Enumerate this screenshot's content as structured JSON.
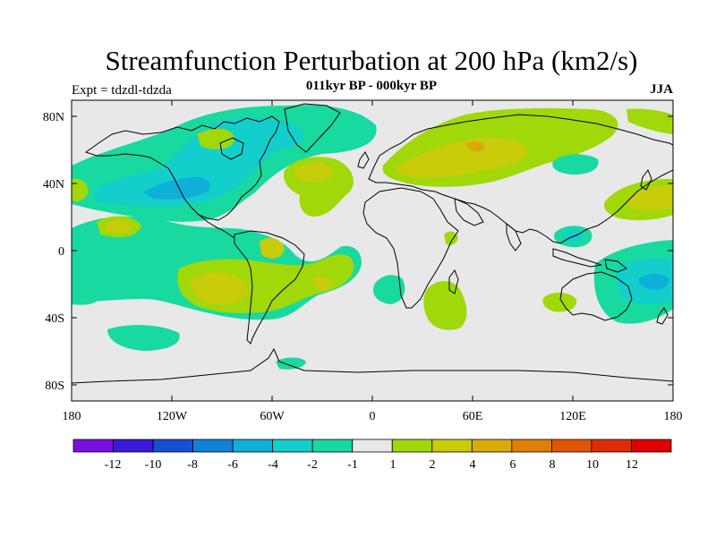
{
  "header": {
    "title": "Streamfunction Perturbation at 200 hPa (km2/s)",
    "subtitle": "011kyr BP - 000kyr BP",
    "left_label": "Expt = tdzdl-tdzda",
    "right_label": "JJA"
  },
  "axes": {
    "lat_ticks": [
      "80N",
      "40N",
      "0",
      "40S",
      "80S"
    ],
    "lon_ticks": [
      "180",
      "120W",
      "60W",
      "0",
      "60E",
      "120E",
      "180"
    ]
  },
  "colorbar": {
    "labels": [
      "-12",
      "-10",
      "-8",
      "-6",
      "-4",
      "-2",
      "-1",
      "1",
      "2",
      "4",
      "6",
      "8",
      "10",
      "12"
    ],
    "colors": [
      "#7a10e0",
      "#3a1ad8",
      "#1450d0",
      "#0f82d8",
      "#0fb0d8",
      "#12cfcc",
      "#18d9a0",
      "#e8e8e8",
      "#a0d80a",
      "#c8cc0a",
      "#dcaa08",
      "#e08008",
      "#e05606",
      "#e02c06",
      "#e00000"
    ]
  },
  "palette": {
    "neutral": "#e8e8e8",
    "light_green": "#a0d80a",
    "yellow_green": "#c8cc0a",
    "teal_green": "#18d9a0",
    "cyan": "#12cfcc"
  }
}
